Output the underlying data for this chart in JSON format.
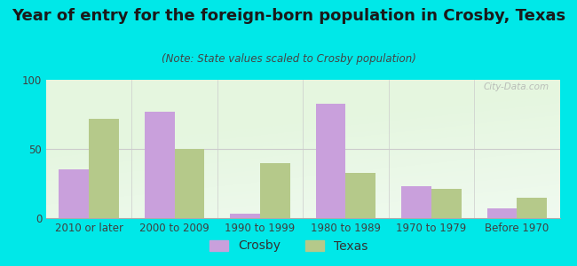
{
  "title": "Year of entry for the foreign-born population in Crosby, Texas",
  "subtitle": "(Note: State values scaled to Crosby population)",
  "categories": [
    "2010 or later",
    "2000 to 2009",
    "1990 to 1999",
    "1980 to 1989",
    "1970 to 1979",
    "Before 1970"
  ],
  "crosby_values": [
    35,
    77,
    3,
    83,
    23,
    7
  ],
  "texas_values": [
    72,
    50,
    40,
    33,
    21,
    15
  ],
  "crosby_color": "#c9a0dc",
  "texas_color": "#b5c98a",
  "bar_width": 0.35,
  "ylim": [
    0,
    100
  ],
  "yticks": [
    0,
    50,
    100
  ],
  "background_color": "#00e8e8",
  "title_fontsize": 13,
  "subtitle_fontsize": 8.5,
  "tick_fontsize": 8.5,
  "legend_fontsize": 10,
  "watermark": "City-Data.com"
}
